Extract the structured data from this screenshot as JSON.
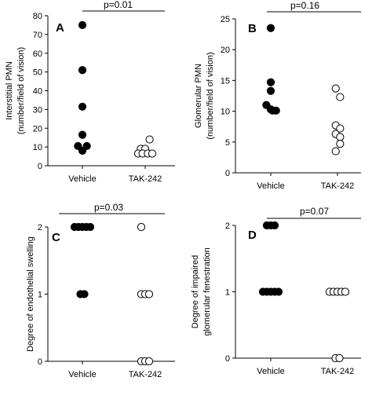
{
  "chart_data": [
    {
      "panel": "A",
      "type": "scatter",
      "ylabel_lines": [
        "Interstitial PMN",
        "(number/field of vision)"
      ],
      "categories": [
        "Vehicle",
        "TAK-242"
      ],
      "ylim": [
        0,
        80
      ],
      "yticks": [
        0,
        10,
        20,
        30,
        40,
        50,
        60,
        70,
        80
      ],
      "significance": "p=0.01",
      "series": [
        {
          "points": [
            {
              "x": 0,
              "y": 75
            },
            {
              "x": 0,
              "y": 51
            },
            {
              "x": 0,
              "y": 31.5
            },
            {
              "x": 0,
              "y": 16.5
            },
            {
              "x": -0.25,
              "y": 10.5
            },
            {
              "x": 0.25,
              "y": 10.5
            },
            {
              "x": 0,
              "y": 8
            }
          ]
        },
        {
          "points": [
            {
              "x": 0.25,
              "y": 14
            },
            {
              "x": -0.25,
              "y": 9
            },
            {
              "x": 0,
              "y": 9
            },
            {
              "x": -0.4,
              "y": 6.5
            },
            {
              "x": -0.15,
              "y": 6.5
            },
            {
              "x": 0.15,
              "y": 6.5
            },
            {
              "x": 0.4,
              "y": 6.5
            }
          ]
        }
      ]
    },
    {
      "panel": "B",
      "type": "scatter",
      "ylabel_lines": [
        "Glomerular PMN",
        "(number/field of vision)"
      ],
      "categories": [
        "Vehicle",
        "TAK-242"
      ],
      "ylim": [
        0,
        25
      ],
      "yticks": [
        0,
        5,
        10,
        15,
        20,
        25
      ],
      "significance": "p=0.16",
      "series": [
        {
          "points": [
            {
              "x": 0,
              "y": 23.5
            },
            {
              "x": 0,
              "y": 14.7
            },
            {
              "x": 0,
              "y": 13.3
            },
            {
              "x": -0.25,
              "y": 11
            },
            {
              "x": 0,
              "y": 10.3
            },
            {
              "x": 0.3,
              "y": 10.1
            },
            {
              "x": 0.1,
              "y": 10.1
            }
          ]
        },
        {
          "points": [
            {
              "x": -0.1,
              "y": 13.7
            },
            {
              "x": 0.15,
              "y": 12.3
            },
            {
              "x": -0.1,
              "y": 7.7
            },
            {
              "x": 0.15,
              "y": 7.2
            },
            {
              "x": -0.1,
              "y": 6.3
            },
            {
              "x": 0.15,
              "y": 5.8
            },
            {
              "x": 0.15,
              "y": 4.7
            },
            {
              "x": -0.1,
              "y": 3.5
            }
          ]
        }
      ]
    },
    {
      "panel": "C",
      "type": "scatter",
      "ylabel_lines": [
        "Degree of endothelial swelling"
      ],
      "categories": [
        "Vehicle",
        "TAK-242"
      ],
      "ylim": [
        0,
        2
      ],
      "yticks": [
        0,
        1,
        2
      ],
      "significance": "p=0.03",
      "series": [
        {
          "points": [
            {
              "x": -0.4,
              "y": 2
            },
            {
              "x": -0.2,
              "y": 2
            },
            {
              "x": 0,
              "y": 2
            },
            {
              "x": 0.2,
              "y": 2
            },
            {
              "x": 0.4,
              "y": 2
            },
            {
              "x": -0.1,
              "y": 1
            },
            {
              "x": 0.1,
              "y": 1
            }
          ]
        },
        {
          "points": [
            {
              "x": -0.2,
              "y": 2
            },
            {
              "x": -0.2,
              "y": 1
            },
            {
              "x": 0,
              "y": 1
            },
            {
              "x": 0.2,
              "y": 1
            },
            {
              "x": -0.2,
              "y": 0
            },
            {
              "x": 0,
              "y": 0
            },
            {
              "x": 0.2,
              "y": 0
            }
          ]
        }
      ]
    },
    {
      "panel": "D",
      "type": "scatter",
      "ylabel_lines": [
        "Degree of impaired",
        "glomerular fenestration"
      ],
      "categories": [
        "Vehicle",
        "TAK-242"
      ],
      "ylim": [
        0,
        2
      ],
      "yticks": [
        0,
        1,
        2
      ],
      "significance": "p=0.07",
      "series": [
        {
          "points": [
            {
              "x": -0.2,
              "y": 2
            },
            {
              "x": 0,
              "y": 2
            },
            {
              "x": 0.2,
              "y": 2
            },
            {
              "x": -0.4,
              "y": 1
            },
            {
              "x": -0.2,
              "y": 1
            },
            {
              "x": 0,
              "y": 1
            },
            {
              "x": 0.2,
              "y": 1
            },
            {
              "x": 0.4,
              "y": 1
            }
          ]
        },
        {
          "points": [
            {
              "x": -0.4,
              "y": 1
            },
            {
              "x": -0.2,
              "y": 1
            },
            {
              "x": 0,
              "y": 1
            },
            {
              "x": 0.2,
              "y": 1
            },
            {
              "x": 0.4,
              "y": 1
            },
            {
              "x": -0.1,
              "y": 0
            },
            {
              "x": 0.1,
              "y": 0
            }
          ]
        }
      ]
    }
  ]
}
